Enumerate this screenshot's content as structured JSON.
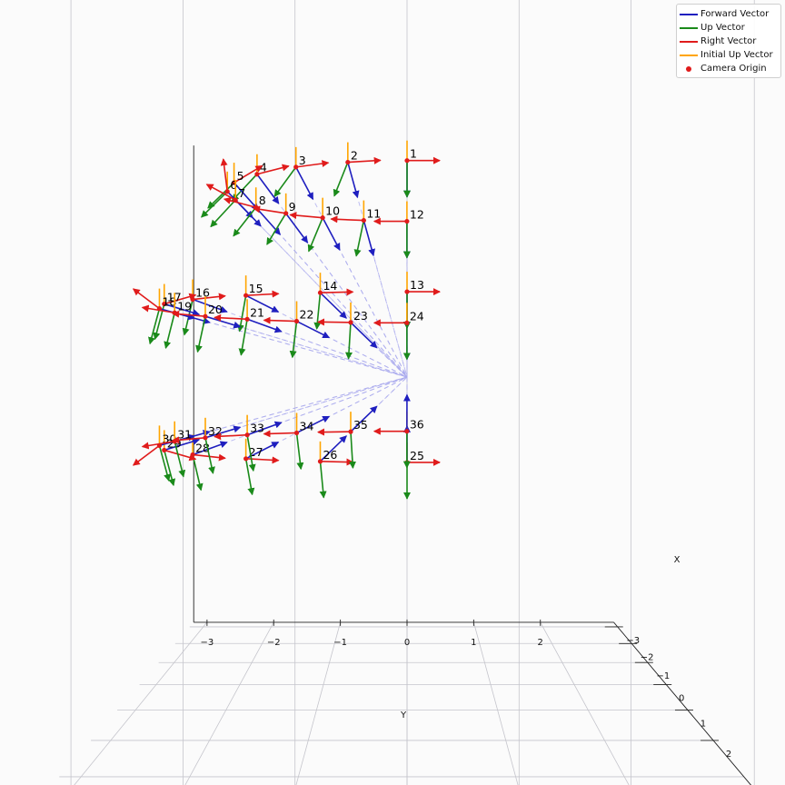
{
  "chart_data": {
    "type": "3d-quiver",
    "title": "",
    "xlabel": "X",
    "ylabel": "Y",
    "xlim": [
      -3,
      3
    ],
    "ylim": [
      -3,
      3
    ],
    "x_ticks": [
      "−3",
      "−2",
      "−1",
      "0",
      "1",
      "2"
    ],
    "y_ticks": [
      "−3",
      "−2",
      "−1",
      "0",
      "1",
      "2"
    ],
    "grid": true,
    "legend_position": "top-right",
    "colors": {
      "forward": "#1f1fbf",
      "up": "#1a8a1a",
      "right": "#e01b1b",
      "initial_up": "#ffa500",
      "origin": "#e01b1b",
      "rays": "#aaaaee"
    },
    "legend": [
      {
        "label": "Forward Vector",
        "kind": "line",
        "color": "#1f1fbf"
      },
      {
        "label": "Up Vector",
        "kind": "line",
        "color": "#1a8a1a"
      },
      {
        "label": "Right Vector",
        "kind": "line",
        "color": "#e01b1b"
      },
      {
        "label": "Initial Up Vector",
        "kind": "line",
        "color": "#ffa500"
      },
      {
        "label": "Camera Origin",
        "kind": "dot",
        "color": "#e01b1b"
      }
    ],
    "rings": [
      {
        "camera_ids": [
          1,
          2,
          3,
          4,
          5,
          6,
          7,
          8,
          9,
          10,
          11,
          12
        ],
        "elevation_deg": 45,
        "azimuth_start_deg": -90,
        "azimuth_step_deg": 16.36
      },
      {
        "camera_ids": [
          13,
          14,
          15,
          16,
          17,
          18,
          19,
          20,
          21,
          22,
          23,
          24
        ],
        "elevation_deg": 15,
        "azimuth_start_deg": -90,
        "azimuth_step_deg": 16.36
      },
      {
        "camera_ids": [
          25,
          26,
          27,
          28,
          29,
          30,
          31,
          32,
          33,
          34,
          35,
          36
        ],
        "elevation_deg": -15,
        "azimuth_start_deg": -90,
        "azimuth_step_deg": 16.36
      }
    ],
    "look_at": [
      0,
      0,
      0
    ]
  }
}
